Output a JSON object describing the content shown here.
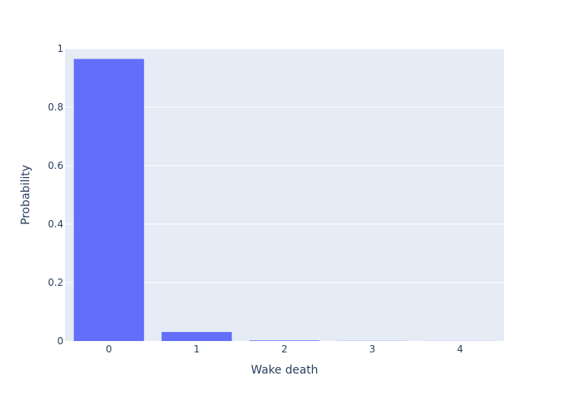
{
  "chart_data": {
    "type": "bar",
    "title": "",
    "xlabel": "Wake death",
    "ylabel": "Probability",
    "categories": [
      "0",
      "1",
      "2",
      "3",
      "4"
    ],
    "values": [
      0.965,
      0.031,
      0.002,
      0.0005,
      0.0002
    ],
    "ylim": [
      0,
      1
    ],
    "yticks": [
      0,
      0.2,
      0.4,
      0.6,
      0.8,
      1
    ],
    "ytick_labels": [
      "0",
      "0.2",
      "0.4",
      "0.6",
      "0.8",
      "1"
    ],
    "grid": true,
    "colors": {
      "bar": "#636efa",
      "plot_background": "#e5ecf6",
      "gridline": "#ffffff",
      "text": "#2a3f5f"
    }
  }
}
